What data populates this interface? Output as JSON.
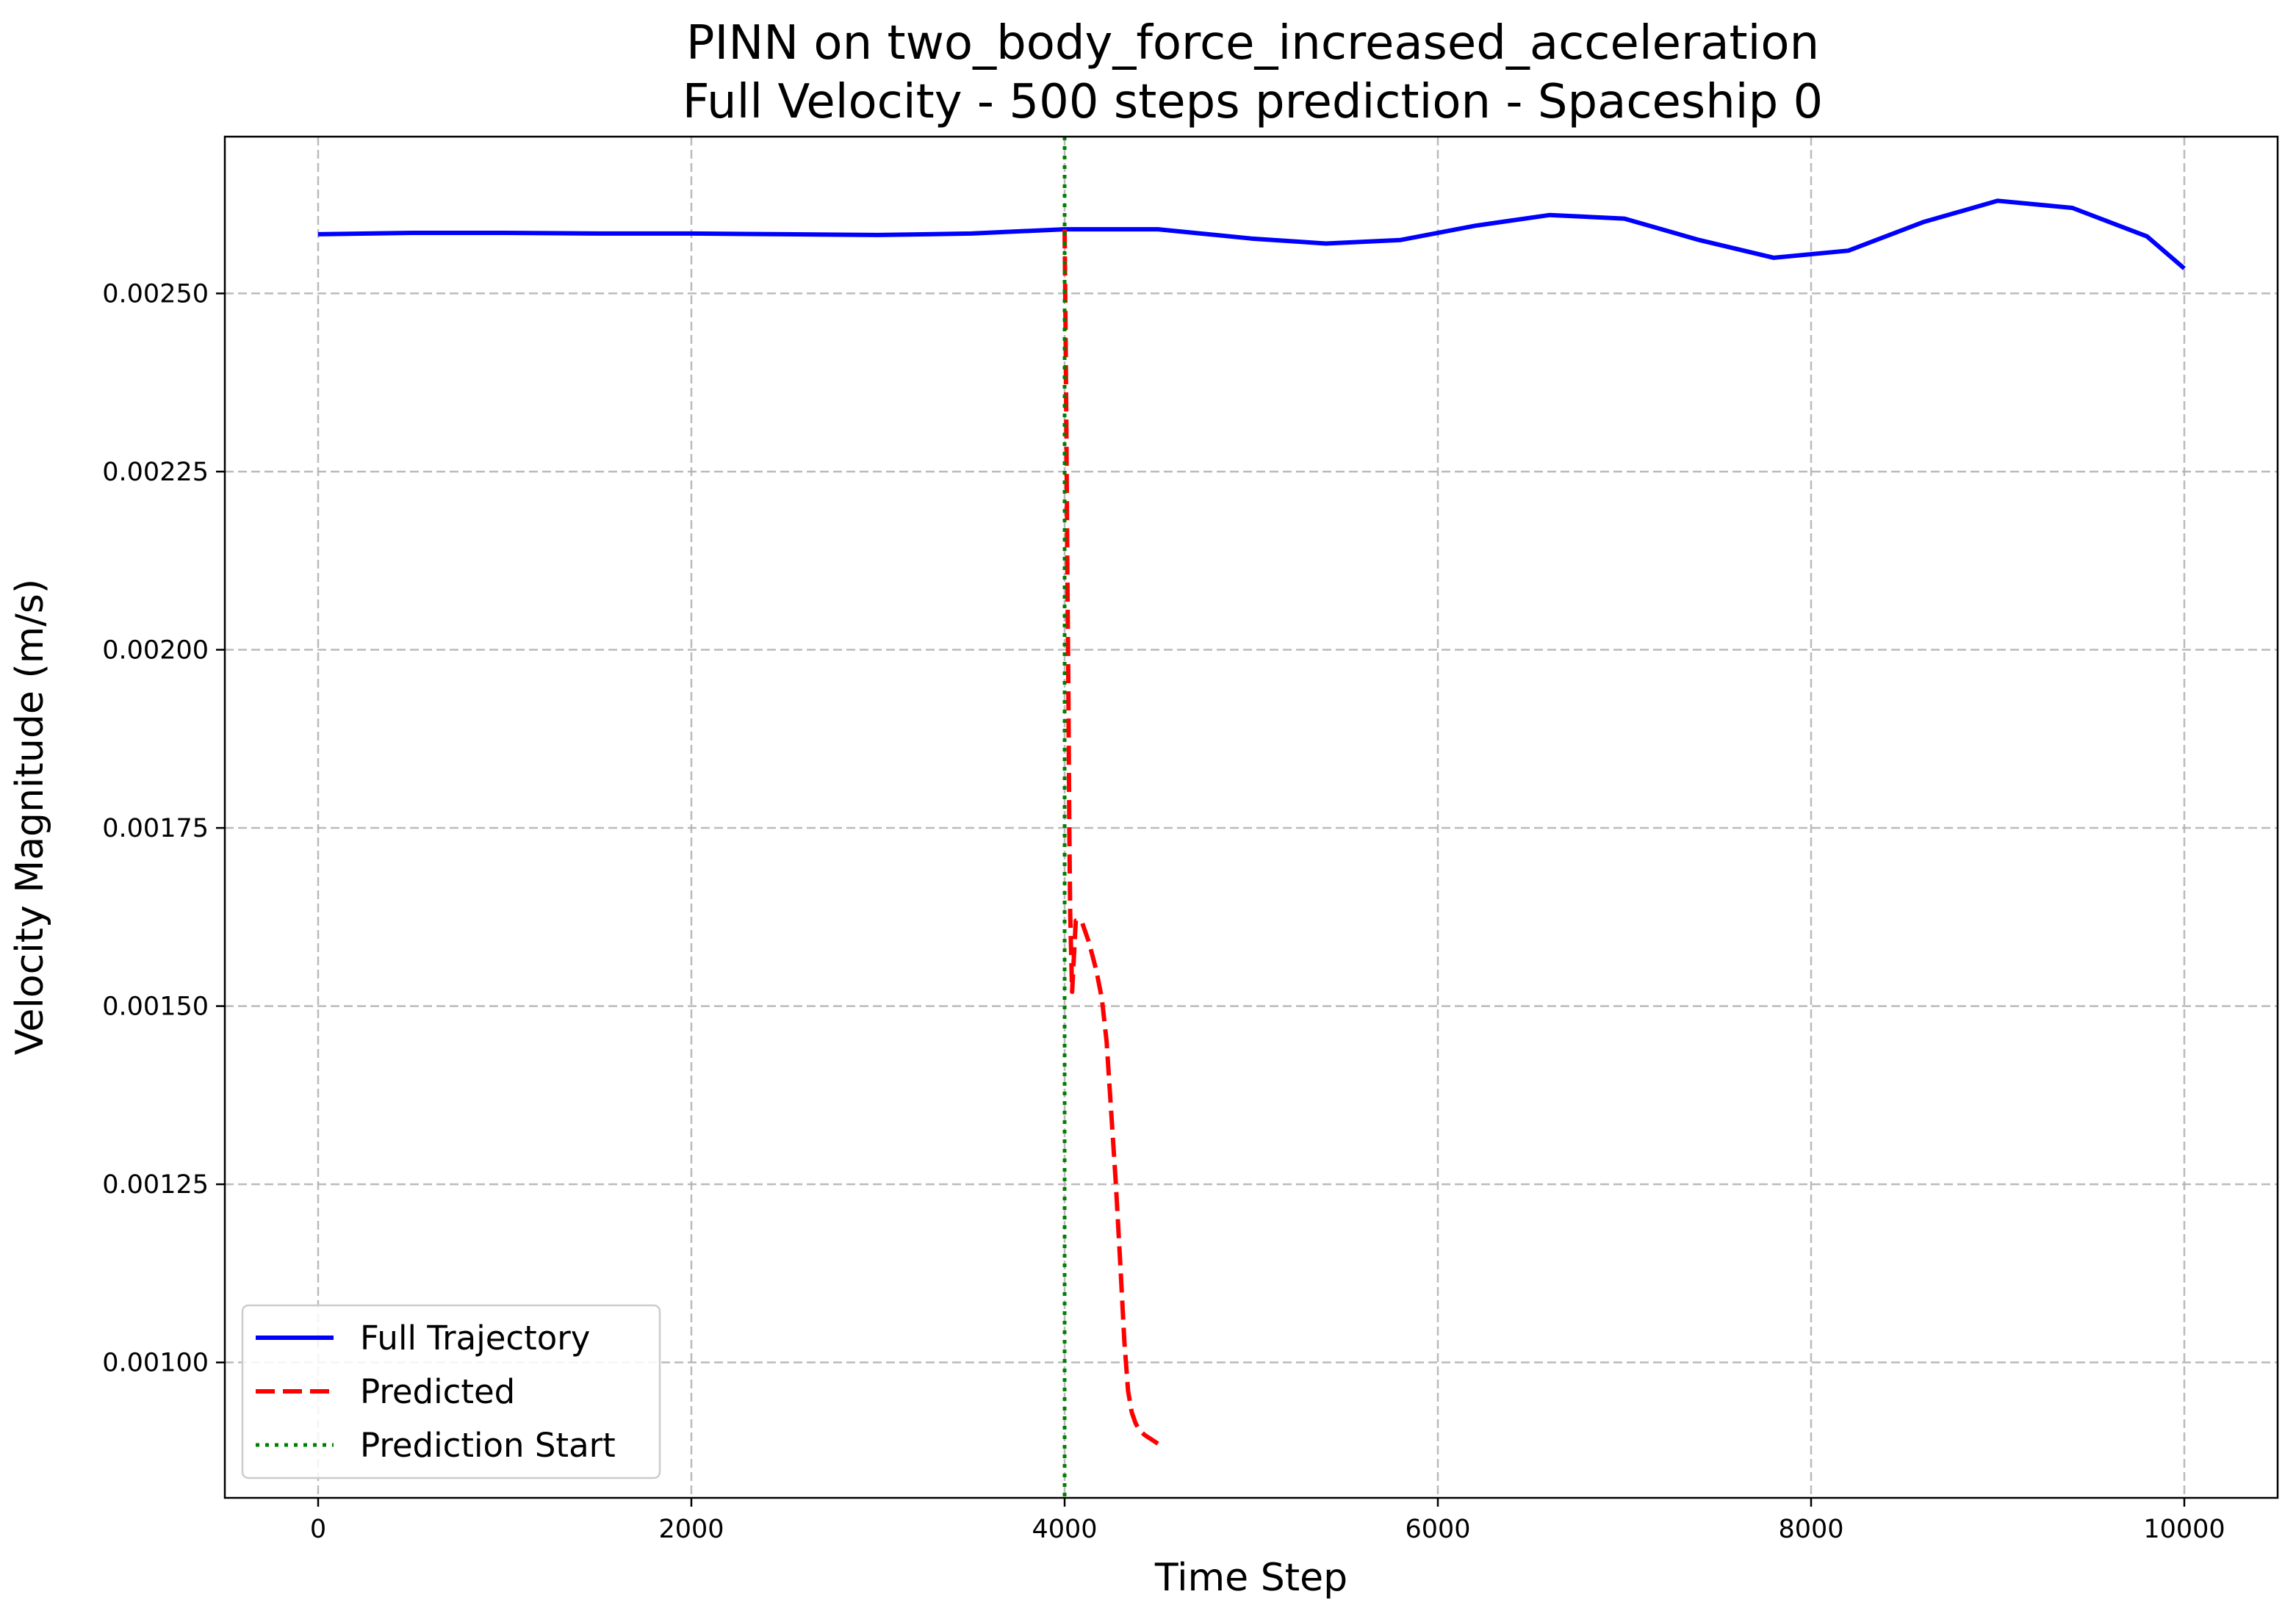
{
  "chart_data": {
    "type": "line",
    "title": [
      "PINN on two_body_force_increased_acceleration",
      "Full Velocity - 500 steps prediction - Spaceship 0"
    ],
    "xlabel": "Time Step",
    "ylabel": "Velocity Magnitude (m/s)",
    "xlim": [
      -500,
      10500
    ],
    "ylim": [
      0.00081,
      0.00272
    ],
    "xticks": [
      0,
      2000,
      4000,
      6000,
      8000,
      10000
    ],
    "xtick_labels": [
      "0",
      "2000",
      "4000",
      "6000",
      "8000",
      "10000"
    ],
    "yticks": [
      0.001,
      0.00125,
      0.0015,
      0.00175,
      0.002,
      0.00225,
      0.0025
    ],
    "ytick_labels": [
      "0.00100",
      "0.00125",
      "0.00150",
      "0.00175",
      "0.00200",
      "0.00225",
      "0.00250"
    ],
    "grid": true,
    "legend_position": "lower-left",
    "series": [
      {
        "name": "Full Trajectory",
        "color": "#0000ff",
        "style": "solid",
        "x": [
          0,
          500,
          1000,
          1500,
          2000,
          2500,
          3000,
          3500,
          4000,
          4500,
          5000,
          5400,
          5800,
          6200,
          6600,
          7000,
          7400,
          7800,
          8200,
          8600,
          9000,
          9400,
          9800,
          10000
        ],
        "y": [
          0.002583,
          0.002585,
          0.002585,
          0.002584,
          0.002584,
          0.002583,
          0.002582,
          0.002584,
          0.00259,
          0.00259,
          0.002577,
          0.00257,
          0.002575,
          0.002595,
          0.00261,
          0.002605,
          0.002575,
          0.00255,
          0.00256,
          0.0026,
          0.00263,
          0.00262,
          0.00258,
          0.002535
        ]
      },
      {
        "name": "Predicted",
        "color": "#ff0000",
        "style": "dashed",
        "x": [
          4000,
          4005,
          4010,
          4015,
          4020,
          4025,
          4030,
          4040,
          4060,
          4090,
          4130,
          4170,
          4200,
          4225,
          4250,
          4275,
          4300,
          4320,
          4340,
          4360,
          4380,
          4400,
          4430,
          4460,
          4500
        ],
        "y": [
          0.00259,
          0.00245,
          0.0023,
          0.0021,
          0.00195,
          0.00175,
          0.00163,
          0.00152,
          0.00162,
          0.00162,
          0.00159,
          0.00155,
          0.00151,
          0.00145,
          0.00135,
          0.00125,
          0.00113,
          0.00103,
          0.00096,
          0.00093,
          0.000915,
          0.000905,
          0.000898,
          0.000893,
          0.000886
        ]
      },
      {
        "name": "Prediction Start",
        "color": "#008000",
        "style": "dotted",
        "vline_x": 4000
      }
    ]
  }
}
